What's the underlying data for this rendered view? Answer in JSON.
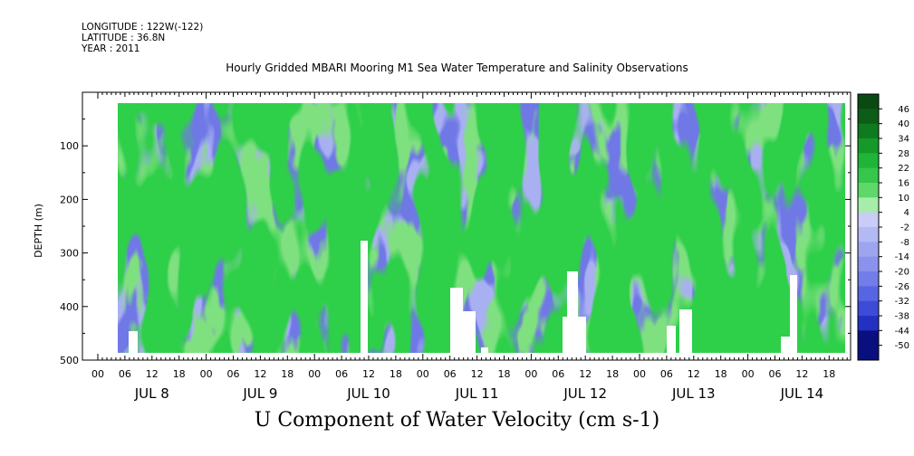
{
  "header": {
    "longitude": "LONGITUDE : 122W(-122)",
    "latitude": "LATITUDE : 36.8N",
    "year": "YEAR : 2011",
    "title": "Hourly Gridded MBARI Mooring M1 Sea Water Temperature and Salinity Observations"
  },
  "chart_data": {
    "type": "heatmap",
    "title": "Hourly Gridded MBARI Mooring M1 Sea Water Temperature and Salinity Observations",
    "xlabel": "U Component of Water Velocity (cm s-1)",
    "ylabel": "DEPTH (m)",
    "ylim": [
      500,
      0
    ],
    "y_ticks": [
      100,
      200,
      300,
      400,
      500
    ],
    "x_hour_ticks": [
      "00",
      "06",
      "12",
      "18",
      "00",
      "06",
      "12",
      "18",
      "00",
      "06",
      "12",
      "18",
      "00",
      "06",
      "12",
      "18",
      "00",
      "06",
      "12",
      "18",
      "00",
      "06",
      "12",
      "18",
      "00",
      "06",
      "12",
      "18"
    ],
    "day_labels": [
      "JUL 8",
      "JUL 9",
      "JUL 10",
      "JUL 11",
      "JUL 12",
      "JUL 13",
      "JUL 14"
    ],
    "colorbar": {
      "levels": [
        "46",
        "40",
        "34",
        "28",
        "22",
        "16",
        "10",
        "4",
        "-2",
        "-8",
        "-14",
        "-20",
        "-26",
        "-32",
        "-38",
        "-44",
        "-50"
      ],
      "range": [
        -50,
        50
      ]
    }
  }
}
